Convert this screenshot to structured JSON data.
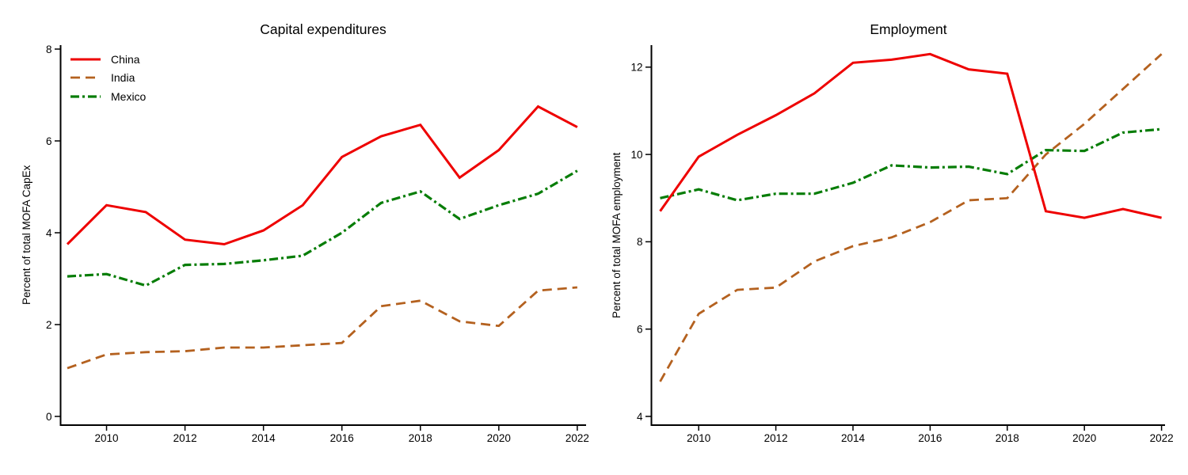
{
  "chart_data": [
    {
      "type": "line",
      "title": "Capital expenditures",
      "ylabel": "Percent of total MOFA CapEx",
      "x": [
        2009,
        2010,
        2011,
        2012,
        2013,
        2014,
        2015,
        2016,
        2017,
        2018,
        2019,
        2020,
        2021,
        2022
      ],
      "xticks": [
        2010,
        2012,
        2014,
        2016,
        2018,
        2020,
        2022
      ],
      "yticks": [
        0,
        2,
        4,
        6,
        8
      ],
      "ylim": [
        0,
        8.1
      ],
      "grid": false,
      "legend_position": "top-left",
      "series": [
        {
          "name": "China",
          "color": "#ee0000",
          "dash": "solid",
          "values": [
            3.75,
            4.6,
            4.45,
            3.85,
            3.75,
            4.05,
            4.6,
            5.65,
            6.1,
            6.35,
            5.2,
            5.8,
            6.75,
            6.3
          ]
        },
        {
          "name": "India",
          "color": "#b4611f",
          "dash": "dashed",
          "values": [
            1.05,
            1.35,
            1.4,
            1.42,
            1.5,
            1.5,
            1.55,
            1.6,
            2.4,
            2.52,
            2.07,
            1.97,
            2.74,
            2.81
          ]
        },
        {
          "name": "Mexico",
          "color": "#077d07",
          "dash": "dash-dot",
          "values": [
            3.05,
            3.1,
            2.85,
            3.3,
            3.32,
            3.4,
            3.5,
            4.0,
            4.65,
            4.9,
            4.3,
            4.6,
            4.85,
            5.35
          ]
        }
      ]
    },
    {
      "type": "line",
      "title": "Employment",
      "ylabel": "Percent of total MOFA employment",
      "x": [
        2009,
        2010,
        2011,
        2012,
        2013,
        2014,
        2015,
        2016,
        2017,
        2018,
        2019,
        2020,
        2021,
        2022
      ],
      "xticks": [
        2010,
        2012,
        2014,
        2016,
        2018,
        2020,
        2022
      ],
      "yticks": [
        4,
        6,
        8,
        10,
        12
      ],
      "ylim": [
        4,
        12.5
      ],
      "grid": false,
      "legend_position": "none",
      "series": [
        {
          "name": "China",
          "color": "#ee0000",
          "dash": "solid",
          "values": [
            8.7,
            9.95,
            10.45,
            10.9,
            11.4,
            12.1,
            12.17,
            12.3,
            11.95,
            11.85,
            8.7,
            8.55,
            8.75,
            8.55
          ]
        },
        {
          "name": "India",
          "color": "#b4611f",
          "dash": "dashed",
          "values": [
            4.8,
            6.35,
            6.9,
            6.95,
            7.55,
            7.9,
            8.1,
            8.45,
            8.95,
            9.0,
            10.0,
            10.7,
            11.5,
            12.3
          ]
        },
        {
          "name": "Mexico",
          "color": "#077d07",
          "dash": "dash-dot",
          "values": [
            9.0,
            9.2,
            8.95,
            9.1,
            9.1,
            9.35,
            9.75,
            9.7,
            9.72,
            9.55,
            10.1,
            10.08,
            10.5,
            10.58
          ]
        }
      ]
    }
  ]
}
